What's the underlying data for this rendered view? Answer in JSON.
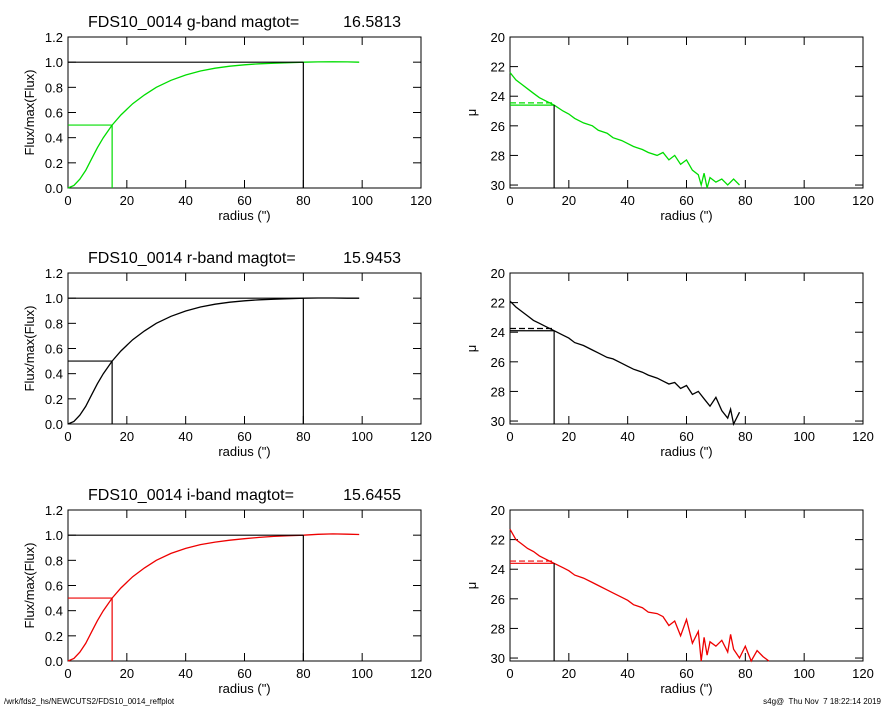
{
  "footer": {
    "path": "/wrk/fds2_hs/NEWCUTS2/FDS10_0014_reffplot",
    "stamp": "s4g@  Thu Nov  7 18:22:14 2019"
  },
  "chart_data": [
    {
      "type": "line",
      "band": "g",
      "color": "#00dd00",
      "title": "FDS10_0014 g-band  magtot=",
      "title_value": "16.5813",
      "xlabel": "radius (\")",
      "ylabel": "Flux/max(Flux)",
      "xlim": [
        0,
        120
      ],
      "ylim": [
        0.0,
        1.2
      ],
      "xticks": [
        "0",
        "20",
        "40",
        "60",
        "80",
        "100",
        "120"
      ],
      "yticks": [
        "0.0",
        "0.2",
        "0.4",
        "0.6",
        "0.8",
        "1.0",
        "1.2"
      ],
      "x": [
        0,
        2,
        4,
        6,
        8,
        10,
        12,
        15,
        18,
        22,
        26,
        30,
        35,
        40,
        45,
        50,
        55,
        60,
        65,
        70,
        75,
        80,
        85,
        90,
        95,
        99
      ],
      "y": [
        0,
        0.02,
        0.07,
        0.14,
        0.23,
        0.32,
        0.4,
        0.5,
        0.58,
        0.67,
        0.74,
        0.8,
        0.856,
        0.898,
        0.93,
        0.952,
        0.968,
        0.979,
        0.987,
        0.992,
        0.996,
        1.0,
        1.002,
        1.003,
        1.002,
        1.0
      ],
      "half_radius": 15,
      "half_level": 0.5,
      "total_radius": 80,
      "total_level": 1.0
    },
    {
      "type": "line",
      "band": "g",
      "color": "#00dd00",
      "xlabel": "radius (\")",
      "ylabel": "μ",
      "xlim": [
        0,
        120
      ],
      "ylim": [
        30.2,
        20
      ],
      "xticks": [
        "0",
        "20",
        "40",
        "60",
        "80",
        "100",
        "120"
      ],
      "yticks": [
        "20",
        "22",
        "24",
        "26",
        "28",
        "30"
      ],
      "x": [
        0,
        2,
        4,
        6,
        8,
        10,
        12,
        15,
        18,
        20,
        22,
        25,
        28,
        30,
        33,
        35,
        38,
        40,
        42,
        45,
        47,
        50,
        52,
        54,
        56,
        58,
        60,
        62,
        64,
        65,
        66,
        67,
        68,
        70,
        72,
        74,
        76,
        78
      ],
      "y": [
        22.4,
        22.9,
        23.2,
        23.5,
        23.8,
        24.1,
        24.3,
        24.6,
        25.0,
        25.2,
        25.5,
        25.8,
        26.0,
        26.3,
        26.5,
        26.8,
        27.0,
        27.2,
        27.4,
        27.6,
        27.8,
        28.0,
        27.8,
        28.3,
        28.0,
        28.6,
        28.3,
        29.0,
        29.3,
        30.0,
        29.2,
        30.2,
        29.5,
        29.8,
        29.6,
        30.0,
        29.6,
        30.0
      ],
      "mu_eff": 24.6,
      "mean_mu_eff": 24.45,
      "half_radius": 15
    },
    {
      "type": "line",
      "band": "r",
      "color": "#000000",
      "title": "FDS10_0014 r-band  magtot=",
      "title_value": "15.9453",
      "xlabel": "radius (\")",
      "ylabel": "Flux/max(Flux)",
      "xlim": [
        0,
        120
      ],
      "ylim": [
        0.0,
        1.2
      ],
      "xticks": [
        "0",
        "20",
        "40",
        "60",
        "80",
        "100",
        "120"
      ],
      "yticks": [
        "0.0",
        "0.2",
        "0.4",
        "0.6",
        "0.8",
        "1.0",
        "1.2"
      ],
      "x": [
        0,
        2,
        4,
        6,
        8,
        10,
        12,
        15,
        18,
        22,
        26,
        30,
        35,
        40,
        45,
        50,
        55,
        60,
        65,
        70,
        75,
        80,
        85,
        90,
        95,
        99
      ],
      "y": [
        0,
        0.02,
        0.07,
        0.14,
        0.23,
        0.32,
        0.4,
        0.5,
        0.58,
        0.67,
        0.74,
        0.8,
        0.856,
        0.898,
        0.93,
        0.952,
        0.968,
        0.979,
        0.987,
        0.992,
        0.996,
        1.0,
        1.001,
        1.001,
        1.0,
        1.0
      ],
      "half_radius": 15,
      "half_level": 0.5,
      "total_radius": 80,
      "total_level": 1.0
    },
    {
      "type": "line",
      "band": "r",
      "color": "#000000",
      "xlabel": "radius (\")",
      "ylabel": "μ",
      "xlim": [
        0,
        120
      ],
      "ylim": [
        30.2,
        20
      ],
      "xticks": [
        "0",
        "20",
        "40",
        "60",
        "80",
        "100",
        "120"
      ],
      "yticks": [
        "20",
        "22",
        "24",
        "26",
        "28",
        "30"
      ],
      "x": [
        0,
        2,
        4,
        6,
        8,
        10,
        12,
        15,
        18,
        20,
        22,
        25,
        28,
        30,
        33,
        35,
        38,
        40,
        42,
        45,
        47,
        50,
        52,
        54,
        56,
        58,
        60,
        62,
        64,
        66,
        68,
        70,
        72,
        74,
        75,
        76,
        78
      ],
      "y": [
        21.9,
        22.3,
        22.6,
        22.9,
        23.2,
        23.4,
        23.6,
        23.9,
        24.2,
        24.4,
        24.7,
        24.9,
        25.2,
        25.4,
        25.7,
        25.8,
        26.1,
        26.3,
        26.5,
        26.7,
        26.9,
        27.1,
        27.3,
        27.5,
        27.4,
        27.8,
        27.6,
        28.2,
        28.0,
        28.5,
        29.0,
        28.4,
        29.3,
        29.8,
        29.2,
        30.2,
        29.4
      ],
      "mu_eff": 23.9,
      "mean_mu_eff": 23.75,
      "half_radius": 15
    },
    {
      "type": "line",
      "band": "i",
      "color": "#ee0000",
      "title": "FDS10_0014 i-band  magtot=",
      "title_value": "15.6455",
      "xlabel": "radius (\")",
      "ylabel": "Flux/max(Flux)",
      "xlim": [
        0,
        120
      ],
      "ylim": [
        0.0,
        1.2
      ],
      "xticks": [
        "0",
        "20",
        "40",
        "60",
        "80",
        "100",
        "120"
      ],
      "yticks": [
        "0.0",
        "0.2",
        "0.4",
        "0.6",
        "0.8",
        "1.0",
        "1.2"
      ],
      "x": [
        0,
        2,
        4,
        6,
        8,
        10,
        12,
        15,
        18,
        22,
        26,
        30,
        35,
        40,
        45,
        50,
        55,
        60,
        65,
        70,
        75,
        80,
        85,
        90,
        95,
        99
      ],
      "y": [
        0,
        0.02,
        0.07,
        0.14,
        0.23,
        0.32,
        0.4,
        0.5,
        0.58,
        0.67,
        0.74,
        0.8,
        0.855,
        0.895,
        0.925,
        0.945,
        0.96,
        0.972,
        0.982,
        0.99,
        0.996,
        1.0,
        1.007,
        1.01,
        1.008,
        1.005
      ],
      "half_radius": 15,
      "half_level": 0.5,
      "total_radius": 80,
      "total_level": 1.0
    },
    {
      "type": "line",
      "band": "i",
      "color": "#ee0000",
      "xlabel": "radius (\")",
      "ylabel": "μ",
      "xlim": [
        0,
        120
      ],
      "ylim": [
        30.2,
        20
      ],
      "xticks": [
        "0",
        "20",
        "40",
        "60",
        "80",
        "100",
        "120"
      ],
      "yticks": [
        "20",
        "22",
        "24",
        "26",
        "28",
        "30"
      ],
      "x": [
        0,
        2,
        4,
        6,
        8,
        10,
        12,
        15,
        18,
        20,
        22,
        25,
        28,
        30,
        33,
        35,
        38,
        40,
        42,
        45,
        47,
        50,
        52,
        54,
        56,
        58,
        60,
        62,
        64,
        65,
        66,
        67,
        68,
        70,
        72,
        74,
        75,
        76,
        78,
        80,
        82,
        84,
        86,
        88
      ],
      "y": [
        21.3,
        22.0,
        22.3,
        22.6,
        22.8,
        23.1,
        23.3,
        23.6,
        23.9,
        24.1,
        24.4,
        24.6,
        24.9,
        25.1,
        25.4,
        25.6,
        25.9,
        26.1,
        26.4,
        26.6,
        26.9,
        27.0,
        27.2,
        27.8,
        27.5,
        28.5,
        27.4,
        29.0,
        28.2,
        30.2,
        28.6,
        29.8,
        28.9,
        29.2,
        28.8,
        29.6,
        28.4,
        29.4,
        30.0,
        29.2,
        30.2,
        29.5,
        29.9,
        30.2
      ],
      "mu_eff": 23.6,
      "mean_mu_eff": 23.45,
      "half_radius": 15
    }
  ]
}
